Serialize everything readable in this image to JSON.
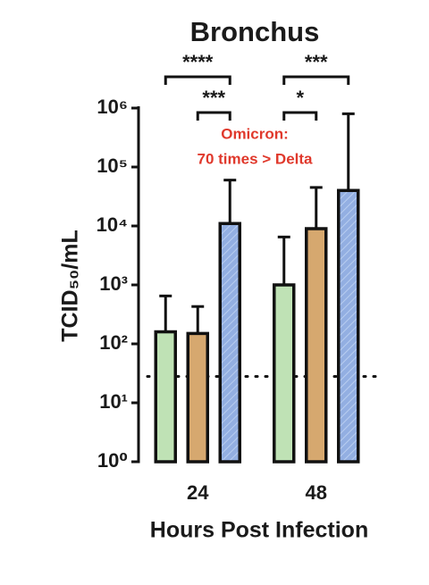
{
  "chart_data": {
    "type": "bar",
    "title": "Bronchus",
    "x_label": "Hours Post Infection",
    "y_label": "TCID₅₀/mL",
    "categories": [
      "24",
      "48"
    ],
    "log_y": true,
    "ylim": [
      1,
      1000000
    ],
    "yticks": [
      {
        "value": 1,
        "label": "10⁰"
      },
      {
        "value": 10,
        "label": "10¹"
      },
      {
        "value": 100,
        "label": "10²"
      },
      {
        "value": 1000,
        "label": "10³"
      },
      {
        "value": 10000,
        "label": "10⁴"
      },
      {
        "value": 100000,
        "label": "10⁵"
      },
      {
        "value": 1000000,
        "label": "10⁶"
      }
    ],
    "series": [
      {
        "color": "#bfe2b5",
        "values": [
          160,
          1000
        ],
        "error_upper": [
          650,
          6500
        ]
      },
      {
        "color": "#d6a86f",
        "values": [
          150,
          9000
        ],
        "error_upper": [
          430,
          45000
        ]
      },
      {
        "color": "#93afe2",
        "hatch": true,
        "values": [
          11000,
          40000
        ],
        "error_upper": [
          60000,
          800000
        ]
      }
    ],
    "reference_line": 28,
    "brackets": [
      {
        "label": "****",
        "category": 0,
        "series": [
          0,
          2
        ]
      },
      {
        "label": "***",
        "category": 0,
        "series": [
          1,
          2
        ]
      },
      {
        "label": "***",
        "category": 1,
        "series": [
          0,
          2
        ]
      },
      {
        "label": "*",
        "category": 1,
        "series": [
          0,
          1
        ]
      }
    ],
    "annotation": [
      "Omicron:",
      "70 times > Delta"
    ],
    "annotation_color": "#e0392c"
  }
}
